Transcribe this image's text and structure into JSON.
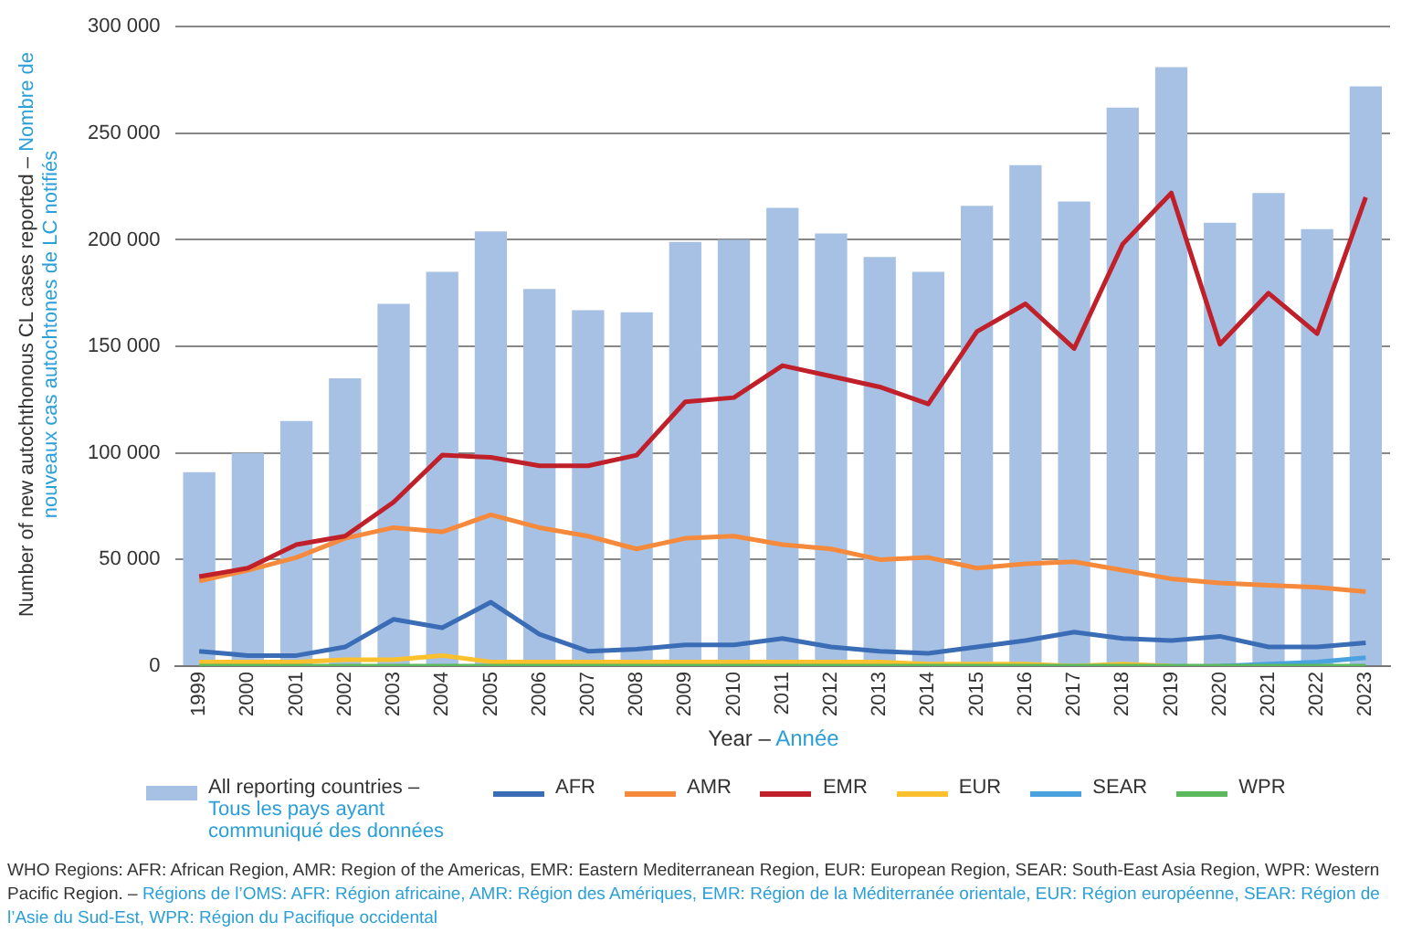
{
  "chart_data": {
    "type": "bar",
    "xlabel": "Year – Année",
    "ylabel": "Number of new autochthonous CL cases reported – Nombre de nouveaux cas autochtones de LC notifiés",
    "categories": [
      "1999",
      "2000",
      "2001",
      "2002",
      "2003",
      "2004",
      "2005",
      "2006",
      "2007",
      "2008",
      "2009",
      "2010",
      "2011",
      "2012",
      "2013",
      "2014",
      "2015",
      "2016",
      "2017",
      "2018",
      "2019",
      "2020",
      "2021",
      "2022",
      "2023"
    ],
    "series": [
      {
        "name": "All reporting countries – Tous les pays ayant communiqué des données",
        "color": "#a7c1e4",
        "values": [
          91000,
          100000,
          115000,
          135000,
          170000,
          185000,
          204000,
          177000,
          167000,
          166000,
          199000,
          200000,
          215000,
          203000,
          192000,
          185000,
          216000,
          235000,
          218000,
          262000,
          281000,
          208000,
          222000,
          205000,
          272000
        ]
      },
      {
        "name": "AFR",
        "type": "line",
        "color": "#3a6db5",
        "values": [
          7000,
          5000,
          5000,
          9000,
          22000,
          18000,
          30000,
          15000,
          7000,
          8000,
          10000,
          10000,
          13000,
          9000,
          7000,
          6000,
          9000,
          12000,
          16000,
          13000,
          12000,
          14000,
          9000,
          9000,
          11000
        ]
      },
      {
        "name": "AMR",
        "type": "line",
        "color": "#f58a3c",
        "values": [
          40000,
          45000,
          51000,
          60000,
          65000,
          63000,
          71000,
          65000,
          61000,
          55000,
          60000,
          61000,
          57000,
          55000,
          50000,
          51000,
          46000,
          48000,
          49000,
          45000,
          41000,
          39000,
          38000,
          37000,
          35000
        ]
      },
      {
        "name": "EMR",
        "type": "line",
        "color": "#c0202a",
        "values": [
          42000,
          46000,
          57000,
          61000,
          77000,
          99000,
          98000,
          94000,
          94000,
          99000,
          124000,
          126000,
          141000,
          136000,
          131000,
          123000,
          157000,
          170000,
          149000,
          198000,
          222000,
          151000,
          175000,
          156000,
          220000
        ]
      },
      {
        "name": "EUR",
        "type": "line",
        "color": "#fbc02d",
        "values": [
          2000,
          2000,
          2000,
          3000,
          3000,
          5000,
          2000,
          2000,
          2000,
          2000,
          2000,
          2000,
          2000,
          2000,
          2000,
          1000,
          1000,
          1000,
          0,
          1000,
          0,
          null,
          null,
          null,
          null
        ]
      },
      {
        "name": "SEAR",
        "type": "line",
        "color": "#4aa3df",
        "values": [
          null,
          null,
          null,
          null,
          null,
          null,
          null,
          null,
          null,
          null,
          null,
          null,
          null,
          null,
          null,
          null,
          null,
          null,
          null,
          null,
          null,
          0,
          1000,
          2000,
          4000
        ]
      },
      {
        "name": "WPR",
        "type": "line",
        "color": "#5cb85c",
        "values": [
          0,
          0,
          0,
          0,
          0,
          0,
          0,
          0,
          0,
          0,
          0,
          0,
          0,
          0,
          0,
          0,
          0,
          0,
          0,
          0,
          0,
          0,
          0,
          0,
          0
        ]
      }
    ],
    "ylim": [
      0,
      300000
    ],
    "yticks": [
      0,
      {
        "value": 50000,
        "label": "50 000"
      },
      {
        "value": 100000,
        "label": "100 000"
      },
      {
        "value": 150000,
        "label": "150 000"
      },
      {
        "value": 200000,
        "label": "200 000"
      },
      {
        "value": 250000,
        "label": "250 000"
      },
      {
        "value": 300000,
        "label": "300 000"
      }
    ],
    "grid": "y",
    "legend": "bottom",
    "marker": "none",
    "line_style": "solid",
    "annotations": [
      "WHO Regions: AFR: African Region, AMR: Region of the Americas, EMR: Eastern Mediterranean Region, EUR: European Region, SEAR: South-East Asia Region, WPR: Western Pacific Region. – Régions de l’OMS: AFR: Région africaine, AMR: Région des Amériques, EMR: Région de la Méditerranée orientale, EUR: Région européenne, SEAR: Région de l’Asie du Sud-Est, WPR: Région du Pacifique occidental"
    ]
  }
}
